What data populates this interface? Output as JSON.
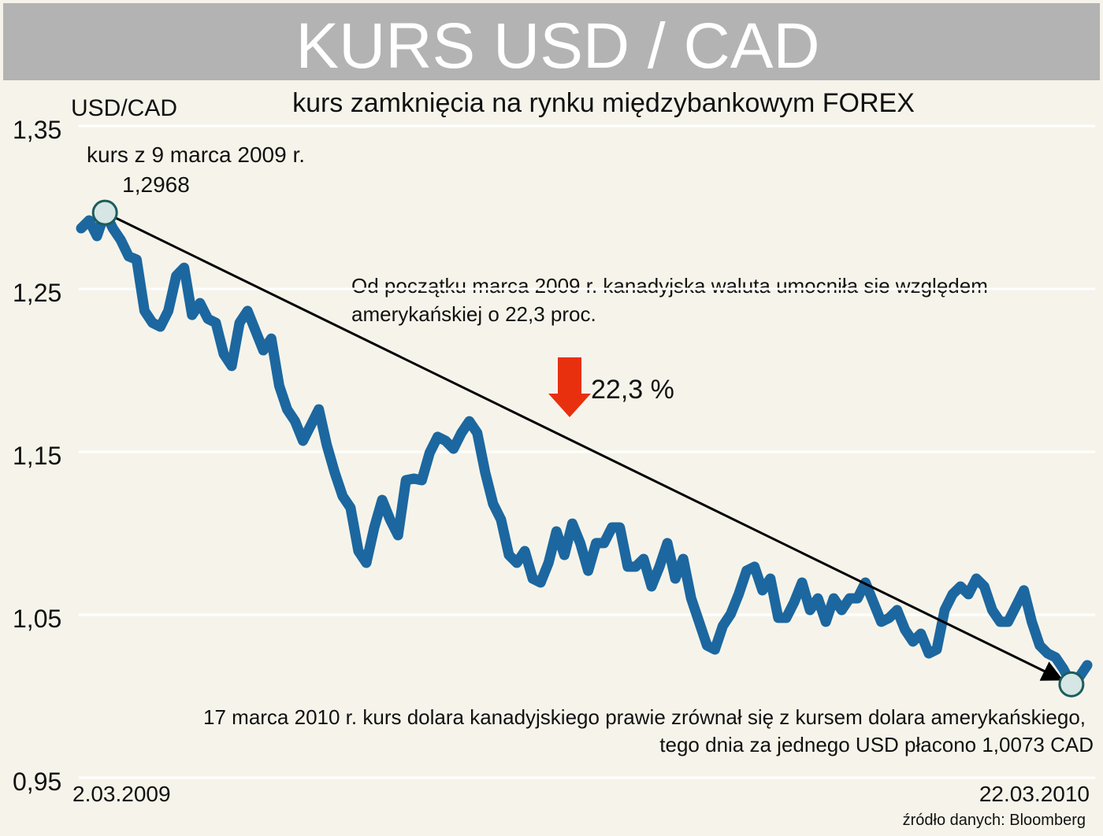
{
  "chart_data": {
    "type": "line",
    "title": "KURS  USD / CAD",
    "subtitle": "kurs zamknięcia na rynku międzybankowym FOREX",
    "y_label": "USD/CAD",
    "annotations": [
      "kurs z 9  marca 2009 r.",
      "Od początku marca 2009 r. kanadyjska waluta umocniła sie względem",
      "amerykańskiej o 22,3 proc.",
      "22,3 %",
      "17 marca 2010 r. kurs dolara kanadyjskiego prawie zrównał się z kursem dolara amerykańskiego,",
      "tego dnia za jednego USD płacono 1,0073 CAD"
    ],
    "source": "źródło danych: Bloomberg",
    "categories": [
      "2.03.2009",
      null,
      null,
      null,
      null,
      null,
      null,
      null,
      null,
      null,
      null,
      null,
      null,
      null,
      null,
      null,
      null,
      null,
      null,
      null,
      null,
      null,
      null,
      null,
      null,
      null,
      null,
      null,
      null,
      null,
      null,
      null,
      null,
      null,
      null,
      null,
      null,
      null,
      null,
      null,
      null,
      null,
      null,
      null,
      null,
      null,
      null,
      null,
      null,
      null,
      null,
      null,
      null,
      null,
      null,
      null,
      null,
      null,
      null,
      null,
      null,
      null,
      null,
      null,
      null,
      null,
      null,
      null,
      null,
      null,
      null,
      null,
      null,
      null,
      null,
      null,
      null,
      null,
      null,
      null,
      null,
      null,
      null,
      null,
      null,
      null,
      null,
      null,
      null,
      null,
      null,
      null,
      null,
      null,
      null,
      null,
      null,
      null,
      null,
      null,
      null,
      null,
      null,
      null,
      null,
      null,
      null,
      null,
      null,
      null,
      null,
      null,
      null,
      null,
      null,
      null,
      null,
      null,
      null,
      null,
      null,
      null,
      null,
      null,
      null,
      null,
      null,
      "22.03.2010"
    ],
    "values": [
      1.2872,
      1.292,
      1.2824,
      1.2968,
      1.2872,
      1.28,
      1.27,
      1.268,
      1.2365,
      1.2292,
      1.2268,
      1.2365,
      1.258,
      1.263,
      1.234,
      1.2413,
      1.2316,
      1.2292,
      1.21,
      1.2027,
      1.2292,
      1.2365,
      1.2244,
      1.2123,
      1.2195,
      1.1906,
      1.1761,
      1.1688,
      1.1568,
      1.1664,
      1.1761,
      1.1543,
      1.1374,
      1.1229,
      1.1157,
      1.0891,
      1.0819,
      1.1036,
      1.1205,
      1.1084,
      1.0988,
      1.1326,
      1.1336,
      1.1326,
      1.1495,
      1.1592,
      1.1568,
      1.1519,
      1.1616,
      1.1688,
      1.1616,
      1.1374,
      1.1181,
      1.1084,
      1.0867,
      1.0819,
      1.0891,
      1.0722,
      1.0698,
      1.0819,
      1.1012,
      1.0867,
      1.106,
      1.094,
      1.077,
      1.094,
      1.094,
      1.1036,
      1.1036,
      1.0795,
      1.0795,
      1.0843,
      1.0674,
      1.0795,
      1.094,
      1.0722,
      1.0843,
      1.0601,
      1.0457,
      1.0312,
      1.0287,
      1.0432,
      1.0505,
      1.0626,
      1.0771,
      1.0795,
      1.065,
      1.0722,
      1.0481,
      1.0481,
      1.0577,
      1.0698,
      1.0529,
      1.0601,
      1.0457,
      1.0601,
      1.0529,
      1.0601,
      1.0601,
      1.0698,
      1.0577,
      1.0457,
      1.0481,
      1.0529,
      1.0408,
      1.0336,
      1.0384,
      1.0263,
      1.0287,
      1.0529,
      1.0626,
      1.0674,
      1.0626,
      1.0722,
      1.0674,
      1.0529,
      1.0457,
      1.0457,
      1.0553,
      1.065,
      1.0457,
      1.0312,
      1.0263,
      1.0239,
      1.0167,
      1.0073,
      1.0118,
      1.0191
    ],
    "color": "#1c67a0",
    "markers": [
      {
        "index": 3,
        "label": "1,2968"
      },
      {
        "index": 125
      }
    ],
    "ylim": [
      0.95,
      1.35
    ],
    "yticks": [
      {
        "value": 0.95,
        "label": "0,95"
      },
      {
        "value": 1.05,
        "label": "1,05"
      },
      {
        "value": 1.15,
        "label": "1,15"
      },
      {
        "value": 1.25,
        "label": "1,25"
      },
      {
        "value": 1.35,
        "label": "1,35"
      }
    ],
    "grid": true
  }
}
